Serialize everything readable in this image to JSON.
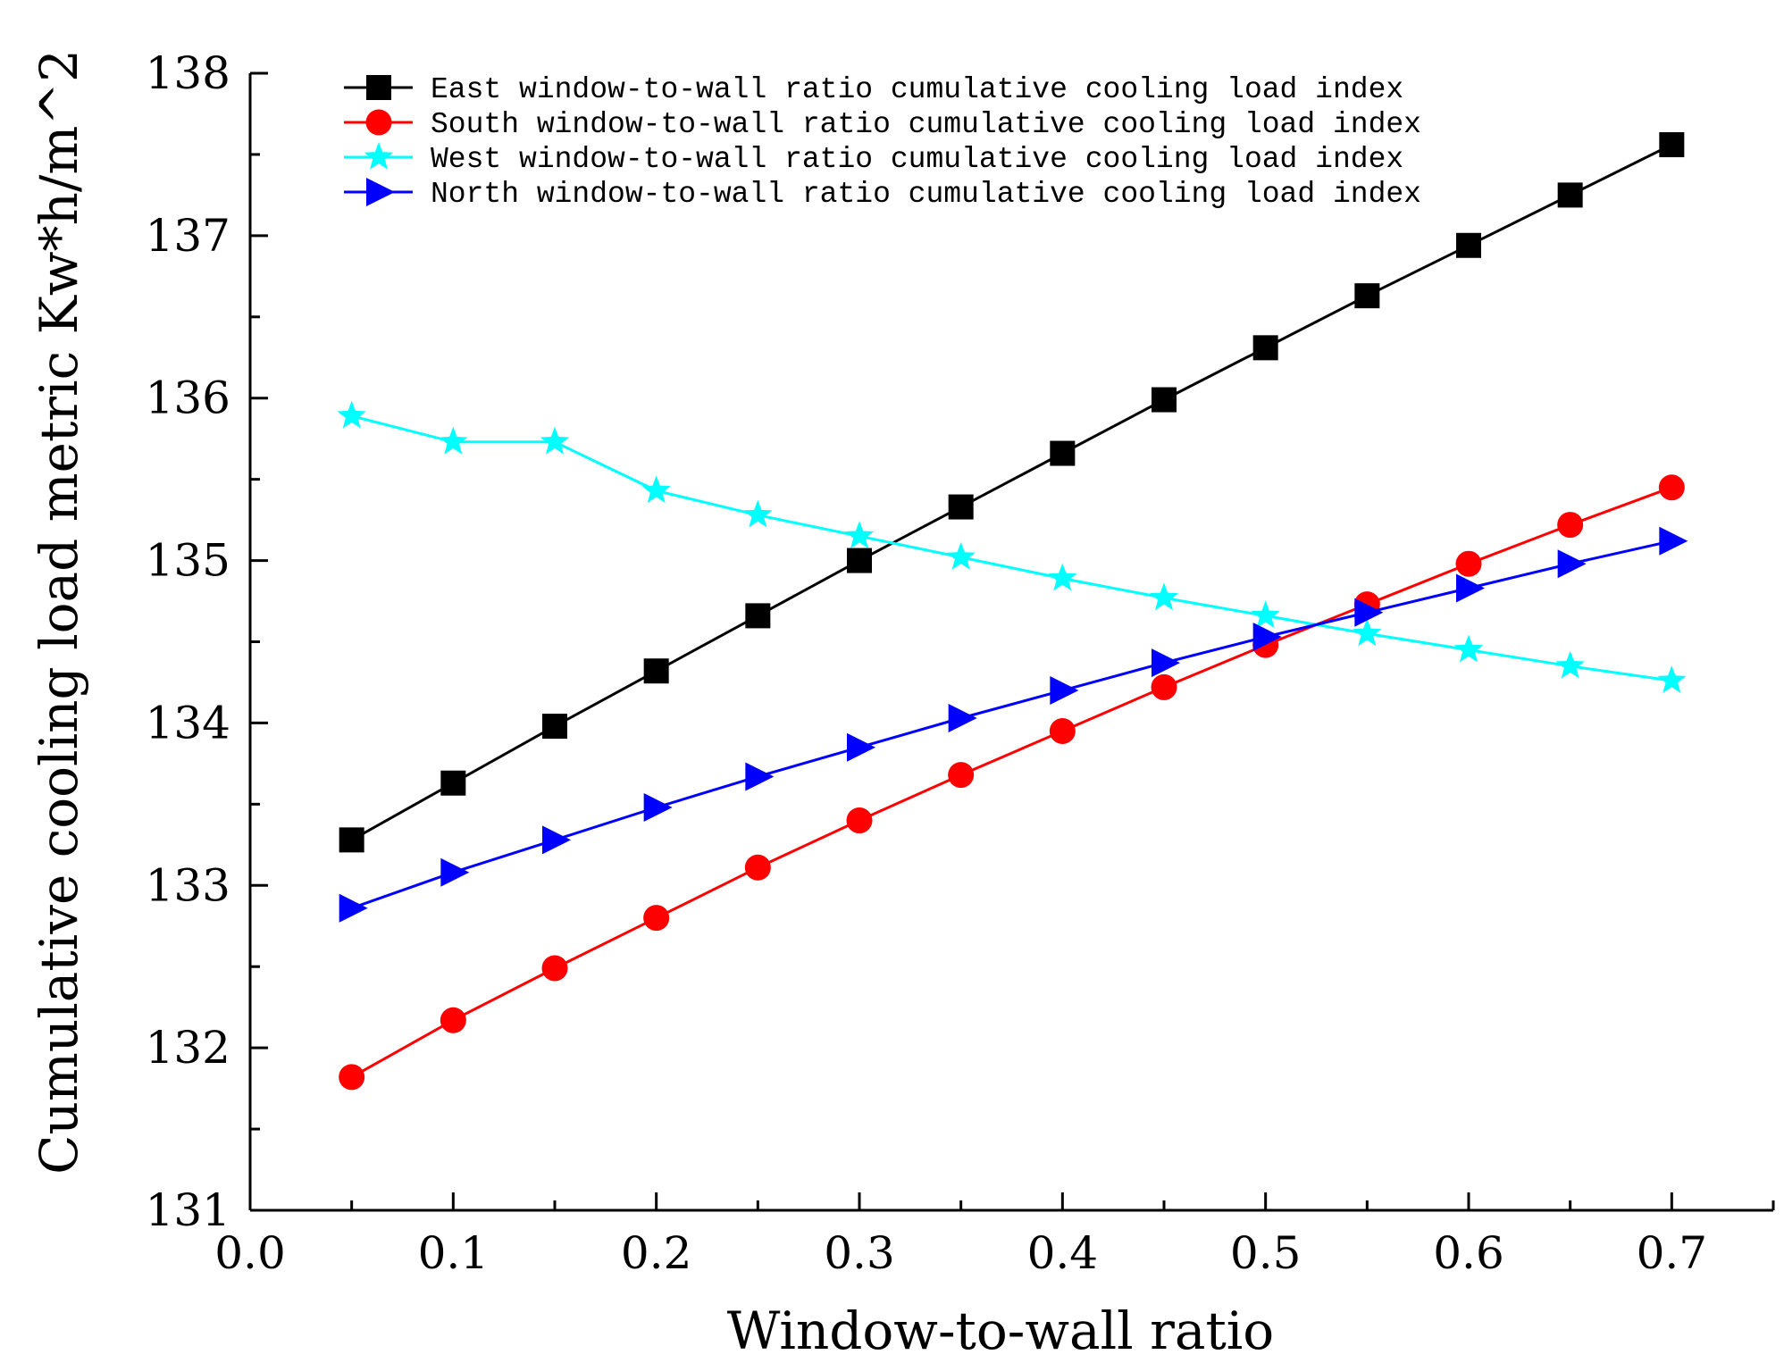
{
  "chart_data": {
    "type": "line",
    "title": "",
    "xlabel": "Window-to-wall ratio",
    "ylabel": "Cumulative cooling load metric Kw*h/m^2",
    "xlim": [
      0.0,
      0.75
    ],
    "ylim": [
      131,
      138
    ],
    "x_ticks": [
      "0.0",
      "0.1",
      "0.2",
      "0.3",
      "0.4",
      "0.5",
      "0.6",
      "0.7"
    ],
    "y_ticks": [
      "131",
      "132",
      "133",
      "134",
      "135",
      "136",
      "137",
      "138"
    ],
    "grid": false,
    "legend_position": "top-left",
    "x": [
      0.05,
      0.1,
      0.15,
      0.2,
      0.25,
      0.3,
      0.35,
      0.4,
      0.45,
      0.5,
      0.55,
      0.6,
      0.65,
      0.7
    ],
    "series": [
      {
        "name": "East window-to-wall ratio cumulative cooling load index",
        "color": "#000000",
        "marker": "square",
        "values": [
          133.28,
          133.63,
          133.98,
          134.32,
          134.66,
          135.0,
          135.33,
          135.66,
          135.99,
          136.31,
          136.63,
          136.94,
          137.25,
          137.56
        ]
      },
      {
        "name": "South window-to-wall ratio cumulative cooling load index",
        "color": "#ff0000",
        "marker": "circle",
        "values": [
          131.82,
          132.17,
          132.49,
          132.8,
          133.11,
          133.4,
          133.68,
          133.95,
          134.22,
          134.48,
          134.73,
          134.98,
          135.22,
          135.45
        ]
      },
      {
        "name": "West window-to-wall ratio cumulative cooling load index",
        "color": "#00ffff",
        "marker": "star",
        "values": [
          135.89,
          135.73,
          135.73,
          135.43,
          135.28,
          135.15,
          135.02,
          134.89,
          134.77,
          134.66,
          134.55,
          134.45,
          134.35,
          134.26
        ]
      },
      {
        "name": "North window-to-wall ratio cumulative cooling load index",
        "color": "#0000ff",
        "marker": "triangle-right",
        "values": [
          132.86,
          133.08,
          133.28,
          133.48,
          133.67,
          133.85,
          134.03,
          134.2,
          134.37,
          134.53,
          134.68,
          134.83,
          134.98,
          135.12
        ]
      }
    ]
  }
}
